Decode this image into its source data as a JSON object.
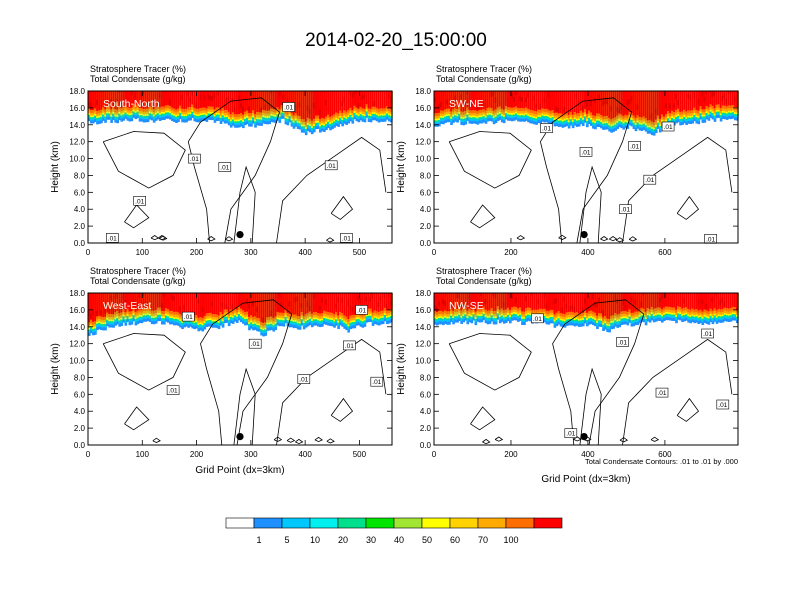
{
  "title": "2014-02-20_15:00:00",
  "colors": {
    "levels": [
      "#ffffff",
      "#1e90ff",
      "#00c8ff",
      "#00f0f0",
      "#00e08c",
      "#00e400",
      "#a0e632",
      "#ffff00",
      "#ffd200",
      "#ffaa00",
      "#ff6e00",
      "#ff0000"
    ],
    "contour": "#000000"
  },
  "colorbar": {
    "labels": [
      "1",
      "5",
      "10",
      "20",
      "30",
      "40",
      "50",
      "60",
      "70",
      "100"
    ]
  },
  "footnote": "Total Condensate Contours: .01 to .01 by .000",
  "chart_data": [
    {
      "type": "heatmap",
      "subtitle1": "Stratosphere Tracer   (%)",
      "subtitle2": "Total Condensate   (g/kg)",
      "panel_label": "South-North",
      "ylabel": "Height (km)",
      "xlabel": "",
      "xlim": [
        0,
        560
      ],
      "ylim": [
        0,
        18
      ],
      "xticks": [
        "0",
        "100",
        "200",
        "300",
        "400",
        "500"
      ],
      "xtick_values": [
        0,
        100,
        200,
        300,
        400,
        500
      ],
      "yticks": [
        "0.0",
        "2.0",
        "4.0",
        "6.0",
        "8.0",
        "10.0",
        "12.0",
        "14.0",
        "16.0",
        "18.0"
      ],
      "tropopause_km": [
        14.2,
        14.4,
        14.6,
        14.3,
        14.5,
        14.6,
        14.2,
        13.8,
        14.0,
        14.5,
        13.0,
        13.5,
        14.3,
        14.6,
        14.4
      ],
      "contour_labels": [
        ".01",
        ".01",
        ".01",
        ".01",
        ".01",
        ".01",
        ".01"
      ],
      "marker": {
        "x": 280,
        "y": 1.0
      }
    },
    {
      "type": "heatmap",
      "subtitle1": "Stratosphere Tracer   (%)",
      "subtitle2": "Total Condensate   (g/kg)",
      "panel_label": "SW-NE",
      "ylabel": "Height (km)",
      "xlabel": "",
      "xlim": [
        0,
        790
      ],
      "ylim": [
        0,
        18
      ],
      "xticks": [
        "0",
        "200",
        "400",
        "600"
      ],
      "xtick_values": [
        0,
        200,
        400,
        600
      ],
      "yticks": [
        "0.0",
        "2.0",
        "4.0",
        "6.0",
        "8.0",
        "10.0",
        "12.0",
        "14.0",
        "16.0",
        "18.0"
      ],
      "tropopause_km": [
        14.0,
        14.3,
        14.1,
        14.4,
        14.5,
        14.2,
        13.6,
        14.0,
        13.2,
        13.8,
        12.8,
        14.0,
        14.3,
        14.6,
        14.5
      ],
      "contour_labels": [
        ".01",
        ".01",
        ".01",
        ".01",
        ".01",
        ".01",
        ".01"
      ],
      "marker": {
        "x": 390,
        "y": 1.0
      }
    },
    {
      "type": "heatmap",
      "subtitle1": "Stratosphere Tracer   (%)",
      "subtitle2": "Total Condensate   (g/kg)",
      "panel_label": "West-East",
      "ylabel": "Height (km)",
      "xlabel": "Grid Point (dx=3km)",
      "xlim": [
        0,
        560
      ],
      "ylim": [
        0,
        18
      ],
      "xticks": [
        "0",
        "100",
        "200",
        "300",
        "400",
        "500"
      ],
      "xtick_values": [
        0,
        100,
        200,
        300,
        400,
        500
      ],
      "yticks": [
        "0.0",
        "2.0",
        "4.0",
        "6.0",
        "8.0",
        "10.0",
        "12.0",
        "14.0",
        "16.0",
        "18.0"
      ],
      "tropopause_km": [
        13.0,
        14.0,
        14.4,
        14.6,
        14.2,
        13.5,
        14.0,
        14.5,
        13.0,
        14.2,
        13.8,
        14.4,
        13.6,
        14.3,
        14.5
      ],
      "contour_labels": [
        ".01",
        ".01",
        ".01",
        ".01",
        ".01",
        ".01",
        ".01"
      ],
      "marker": {
        "x": 280,
        "y": 1.0
      }
    },
    {
      "type": "heatmap",
      "subtitle1": "Stratosphere Tracer   (%)",
      "subtitle2": "Total Condensate   (g/kg)",
      "panel_label": "NW-SE",
      "ylabel": "Height (km)",
      "xlabel": "Grid Point (dx=3km)",
      "xlim": [
        0,
        790
      ],
      "ylim": [
        0,
        18
      ],
      "xticks": [
        "0",
        "200",
        "400",
        "600"
      ],
      "xtick_values": [
        0,
        200,
        400,
        600
      ],
      "yticks": [
        "0.0",
        "2.0",
        "4.0",
        "6.0",
        "8.0",
        "10.0",
        "12.0",
        "14.0",
        "16.0",
        "18.0"
      ],
      "tropopause_km": [
        14.2,
        14.4,
        14.5,
        14.6,
        14.5,
        14.3,
        14.0,
        14.2,
        13.5,
        14.3,
        14.5,
        14.6,
        14.4,
        14.6,
        14.5
      ],
      "contour_labels": [
        ".01",
        ".01",
        ".01",
        ".01",
        ".01",
        ".01"
      ],
      "marker": {
        "x": 390,
        "y": 1.0
      }
    }
  ]
}
